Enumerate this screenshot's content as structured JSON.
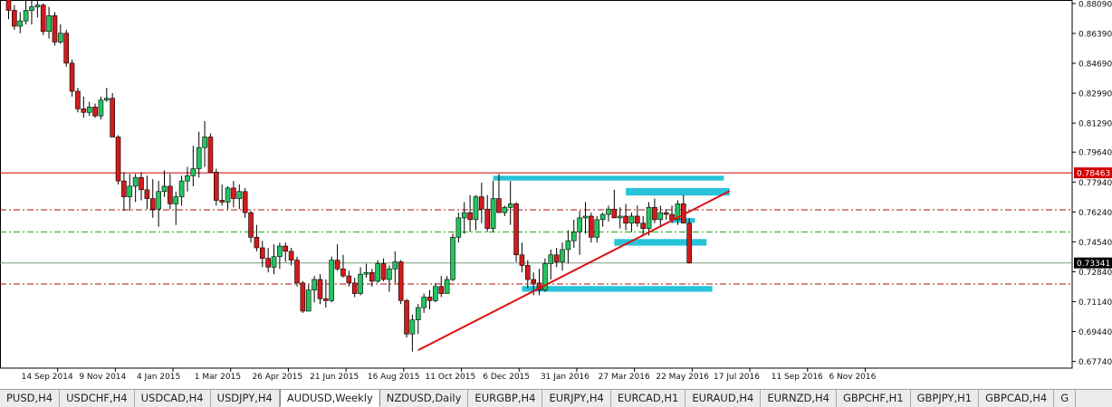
{
  "chart_data": {
    "type": "candlestick",
    "symbol": "AUDUSD",
    "timeframe": "Weekly",
    "y_ticks": [
      "0.88090",
      "0.86390",
      "0.84690",
      "0.82990",
      "0.81290",
      "0.79640",
      "0.77940",
      "0.76240",
      "0.74540",
      "0.72840",
      "0.71140",
      "0.69440",
      "0.67740"
    ],
    "x_ticks": [
      "14 Sep 2014",
      "9 Nov 2014",
      "4 Jan 2015",
      "1 Mar 2015",
      "26 Apr 2015",
      "21 Jun 2015",
      "16 Aug 2015",
      "11 Oct 2015",
      "6 Dec 2015",
      "31 Jan 2016",
      "27 Mar 2016",
      "22 May 2016",
      "17 Jul 2016",
      "11 Sep 2016",
      "6 Nov 2016"
    ],
    "ylim": [
      0.6736,
      0.8829
    ],
    "price_lines": [
      {
        "label": "0.78463",
        "value": 0.78463,
        "color": "#cc0000",
        "style": "solid",
        "label_bg": "#d40000",
        "label_fg": "#ffffff"
      },
      {
        "label": "0.73341",
        "value": 0.73341,
        "color": "#7a9a7a",
        "style": "solid",
        "label_bg": "#000000",
        "label_fg": "#ffffff"
      }
    ],
    "levels": [
      {
        "value": 0.7636,
        "color": "#aa1111",
        "style": "dash-dot"
      },
      {
        "value": 0.751,
        "color": "#22aa22",
        "style": "dash-dot"
      },
      {
        "value": 0.7214,
        "color": "#aa1111",
        "style": "dash-dot"
      }
    ],
    "candles": [
      {
        "o": 0.883,
        "h": 0.884,
        "l": 0.872,
        "c": 0.877
      },
      {
        "o": 0.877,
        "h": 0.88,
        "l": 0.866,
        "c": 0.868
      },
      {
        "o": 0.868,
        "h": 0.876,
        "l": 0.864,
        "c": 0.871
      },
      {
        "o": 0.871,
        "h": 0.883,
        "l": 0.869,
        "c": 0.877
      },
      {
        "o": 0.877,
        "h": 0.885,
        "l": 0.869,
        "c": 0.879
      },
      {
        "o": 0.879,
        "h": 0.883,
        "l": 0.873,
        "c": 0.88
      },
      {
        "o": 0.88,
        "h": 0.881,
        "l": 0.863,
        "c": 0.865
      },
      {
        "o": 0.865,
        "h": 0.879,
        "l": 0.861,
        "c": 0.874
      },
      {
        "o": 0.874,
        "h": 0.876,
        "l": 0.857,
        "c": 0.859
      },
      {
        "o": 0.859,
        "h": 0.869,
        "l": 0.858,
        "c": 0.864
      },
      {
        "o": 0.864,
        "h": 0.866,
        "l": 0.845,
        "c": 0.847
      },
      {
        "o": 0.847,
        "h": 0.849,
        "l": 0.828,
        "c": 0.831
      },
      {
        "o": 0.831,
        "h": 0.833,
        "l": 0.819,
        "c": 0.821
      },
      {
        "o": 0.821,
        "h": 0.828,
        "l": 0.816,
        "c": 0.819
      },
      {
        "o": 0.819,
        "h": 0.825,
        "l": 0.817,
        "c": 0.822
      },
      {
        "o": 0.822,
        "h": 0.824,
        "l": 0.816,
        "c": 0.817
      },
      {
        "o": 0.817,
        "h": 0.828,
        "l": 0.815,
        "c": 0.826
      },
      {
        "o": 0.826,
        "h": 0.833,
        "l": 0.825,
        "c": 0.827
      },
      {
        "o": 0.827,
        "h": 0.83,
        "l": 0.807,
        "c": 0.805
      },
      {
        "o": 0.805,
        "h": 0.806,
        "l": 0.778,
        "c": 0.78
      },
      {
        "o": 0.78,
        "h": 0.785,
        "l": 0.763,
        "c": 0.771
      },
      {
        "o": 0.771,
        "h": 0.784,
        "l": 0.763,
        "c": 0.777
      },
      {
        "o": 0.777,
        "h": 0.784,
        "l": 0.768,
        "c": 0.782
      },
      {
        "o": 0.782,
        "h": 0.785,
        "l": 0.769,
        "c": 0.775
      },
      {
        "o": 0.775,
        "h": 0.783,
        "l": 0.764,
        "c": 0.77
      },
      {
        "o": 0.77,
        "h": 0.781,
        "l": 0.759,
        "c": 0.764
      },
      {
        "o": 0.764,
        "h": 0.78,
        "l": 0.754,
        "c": 0.774
      },
      {
        "o": 0.774,
        "h": 0.786,
        "l": 0.771,
        "c": 0.777
      },
      {
        "o": 0.777,
        "h": 0.784,
        "l": 0.764,
        "c": 0.767
      },
      {
        "o": 0.767,
        "h": 0.774,
        "l": 0.755,
        "c": 0.771
      },
      {
        "o": 0.771,
        "h": 0.783,
        "l": 0.766,
        "c": 0.78
      },
      {
        "o": 0.78,
        "h": 0.788,
        "l": 0.774,
        "c": 0.783
      },
      {
        "o": 0.783,
        "h": 0.8,
        "l": 0.777,
        "c": 0.787
      },
      {
        "o": 0.787,
        "h": 0.808,
        "l": 0.782,
        "c": 0.799
      },
      {
        "o": 0.799,
        "h": 0.814,
        "l": 0.788,
        "c": 0.805
      },
      {
        "o": 0.805,
        "h": 0.807,
        "l": 0.786,
        "c": 0.785
      },
      {
        "o": 0.785,
        "h": 0.787,
        "l": 0.766,
        "c": 0.769
      },
      {
        "o": 0.769,
        "h": 0.778,
        "l": 0.766,
        "c": 0.768
      },
      {
        "o": 0.768,
        "h": 0.777,
        "l": 0.764,
        "c": 0.776
      },
      {
        "o": 0.776,
        "h": 0.78,
        "l": 0.765,
        "c": 0.77
      },
      {
        "o": 0.77,
        "h": 0.778,
        "l": 0.764,
        "c": 0.774
      },
      {
        "o": 0.774,
        "h": 0.776,
        "l": 0.759,
        "c": 0.762
      },
      {
        "o": 0.762,
        "h": 0.763,
        "l": 0.745,
        "c": 0.748
      },
      {
        "o": 0.748,
        "h": 0.755,
        "l": 0.74,
        "c": 0.742
      },
      {
        "o": 0.742,
        "h": 0.746,
        "l": 0.731,
        "c": 0.736
      },
      {
        "o": 0.736,
        "h": 0.742,
        "l": 0.728,
        "c": 0.731
      },
      {
        "o": 0.731,
        "h": 0.744,
        "l": 0.727,
        "c": 0.737
      },
      {
        "o": 0.737,
        "h": 0.745,
        "l": 0.73,
        "c": 0.743
      },
      {
        "o": 0.743,
        "h": 0.745,
        "l": 0.734,
        "c": 0.74
      },
      {
        "o": 0.74,
        "h": 0.742,
        "l": 0.732,
        "c": 0.735
      },
      {
        "o": 0.735,
        "h": 0.737,
        "l": 0.72,
        "c": 0.722
      },
      {
        "o": 0.722,
        "h": 0.723,
        "l": 0.705,
        "c": 0.706
      },
      {
        "o": 0.706,
        "h": 0.721,
        "l": 0.706,
        "c": 0.718
      },
      {
        "o": 0.718,
        "h": 0.726,
        "l": 0.711,
        "c": 0.724
      },
      {
        "o": 0.724,
        "h": 0.727,
        "l": 0.71,
        "c": 0.713
      },
      {
        "o": 0.713,
        "h": 0.724,
        "l": 0.708,
        "c": 0.712
      },
      {
        "o": 0.712,
        "h": 0.737,
        "l": 0.711,
        "c": 0.735
      },
      {
        "o": 0.735,
        "h": 0.744,
        "l": 0.729,
        "c": 0.73
      },
      {
        "o": 0.73,
        "h": 0.738,
        "l": 0.725,
        "c": 0.726
      },
      {
        "o": 0.726,
        "h": 0.729,
        "l": 0.72,
        "c": 0.722
      },
      {
        "o": 0.722,
        "h": 0.725,
        "l": 0.714,
        "c": 0.716
      },
      {
        "o": 0.716,
        "h": 0.731,
        "l": 0.715,
        "c": 0.727
      },
      {
        "o": 0.727,
        "h": 0.733,
        "l": 0.725,
        "c": 0.728
      },
      {
        "o": 0.728,
        "h": 0.73,
        "l": 0.72,
        "c": 0.723
      },
      {
        "o": 0.723,
        "h": 0.735,
        "l": 0.722,
        "c": 0.733
      },
      {
        "o": 0.733,
        "h": 0.736,
        "l": 0.723,
        "c": 0.724
      },
      {
        "o": 0.724,
        "h": 0.732,
        "l": 0.717,
        "c": 0.73
      },
      {
        "o": 0.73,
        "h": 0.74,
        "l": 0.722,
        "c": 0.734
      },
      {
        "o": 0.734,
        "h": 0.735,
        "l": 0.71,
        "c": 0.712
      },
      {
        "o": 0.712,
        "h": 0.713,
        "l": 0.691,
        "c": 0.693
      },
      {
        "o": 0.693,
        "h": 0.704,
        "l": 0.683,
        "c": 0.701
      },
      {
        "o": 0.701,
        "h": 0.71,
        "l": 0.693,
        "c": 0.708
      },
      {
        "o": 0.708,
        "h": 0.716,
        "l": 0.705,
        "c": 0.714
      },
      {
        "o": 0.714,
        "h": 0.718,
        "l": 0.707,
        "c": 0.712
      },
      {
        "o": 0.712,
        "h": 0.722,
        "l": 0.711,
        "c": 0.72
      },
      {
        "o": 0.72,
        "h": 0.726,
        "l": 0.714,
        "c": 0.716
      },
      {
        "o": 0.716,
        "h": 0.726,
        "l": 0.716,
        "c": 0.724
      },
      {
        "o": 0.724,
        "h": 0.75,
        "l": 0.723,
        "c": 0.748
      },
      {
        "o": 0.748,
        "h": 0.762,
        "l": 0.745,
        "c": 0.759
      },
      {
        "o": 0.759,
        "h": 0.768,
        "l": 0.75,
        "c": 0.762
      },
      {
        "o": 0.762,
        "h": 0.772,
        "l": 0.751,
        "c": 0.758
      },
      {
        "o": 0.758,
        "h": 0.772,
        "l": 0.752,
        "c": 0.771
      },
      {
        "o": 0.771,
        "h": 0.779,
        "l": 0.756,
        "c": 0.764
      },
      {
        "o": 0.764,
        "h": 0.772,
        "l": 0.751,
        "c": 0.753
      },
      {
        "o": 0.753,
        "h": 0.78,
        "l": 0.751,
        "c": 0.77
      },
      {
        "o": 0.77,
        "h": 0.784,
        "l": 0.764,
        "c": 0.762
      },
      {
        "o": 0.762,
        "h": 0.766,
        "l": 0.76,
        "c": 0.765
      },
      {
        "o": 0.765,
        "h": 0.78,
        "l": 0.755,
        "c": 0.767
      },
      {
        "o": 0.767,
        "h": 0.768,
        "l": 0.734,
        "c": 0.738
      },
      {
        "o": 0.738,
        "h": 0.745,
        "l": 0.728,
        "c": 0.732
      },
      {
        "o": 0.732,
        "h": 0.735,
        "l": 0.719,
        "c": 0.724
      },
      {
        "o": 0.724,
        "h": 0.728,
        "l": 0.715,
        "c": 0.722
      },
      {
        "o": 0.722,
        "h": 0.73,
        "l": 0.715,
        "c": 0.718
      },
      {
        "o": 0.718,
        "h": 0.736,
        "l": 0.717,
        "c": 0.733
      },
      {
        "o": 0.733,
        "h": 0.741,
        "l": 0.724,
        "c": 0.738
      },
      {
        "o": 0.738,
        "h": 0.742,
        "l": 0.731,
        "c": 0.734
      },
      {
        "o": 0.734,
        "h": 0.745,
        "l": 0.729,
        "c": 0.741
      },
      {
        "o": 0.741,
        "h": 0.752,
        "l": 0.733,
        "c": 0.746
      },
      {
        "o": 0.746,
        "h": 0.758,
        "l": 0.742,
        "c": 0.751
      },
      {
        "o": 0.751,
        "h": 0.763,
        "l": 0.738,
        "c": 0.759
      },
      {
        "o": 0.759,
        "h": 0.768,
        "l": 0.75,
        "c": 0.76
      },
      {
        "o": 0.76,
        "h": 0.762,
        "l": 0.745,
        "c": 0.748
      },
      {
        "o": 0.748,
        "h": 0.76,
        "l": 0.745,
        "c": 0.758
      },
      {
        "o": 0.758,
        "h": 0.762,
        "l": 0.754,
        "c": 0.761
      },
      {
        "o": 0.761,
        "h": 0.766,
        "l": 0.757,
        "c": 0.764
      },
      {
        "o": 0.764,
        "h": 0.775,
        "l": 0.76,
        "c": 0.759
      },
      {
        "o": 0.759,
        "h": 0.765,
        "l": 0.753,
        "c": 0.76
      },
      {
        "o": 0.76,
        "h": 0.767,
        "l": 0.752,
        "c": 0.756
      },
      {
        "o": 0.756,
        "h": 0.762,
        "l": 0.751,
        "c": 0.76
      },
      {
        "o": 0.76,
        "h": 0.766,
        "l": 0.754,
        "c": 0.756
      },
      {
        "o": 0.756,
        "h": 0.76,
        "l": 0.749,
        "c": 0.753
      },
      {
        "o": 0.753,
        "h": 0.768,
        "l": 0.749,
        "c": 0.765
      },
      {
        "o": 0.765,
        "h": 0.77,
        "l": 0.756,
        "c": 0.758
      },
      {
        "o": 0.758,
        "h": 0.766,
        "l": 0.754,
        "c": 0.762
      },
      {
        "o": 0.762,
        "h": 0.764,
        "l": 0.758,
        "c": 0.761
      },
      {
        "o": 0.761,
        "h": 0.766,
        "l": 0.756,
        "c": 0.758
      },
      {
        "o": 0.758,
        "h": 0.769,
        "l": 0.755,
        "c": 0.767
      },
      {
        "o": 0.767,
        "h": 0.772,
        "l": 0.756,
        "c": 0.756
      },
      {
        "o": 0.756,
        "h": 0.759,
        "l": 0.733,
        "c": 0.7334
      }
    ],
    "zones": [
      {
        "from": 0.7822,
        "to": 0.781,
        "i0": 84,
        "i1": 124.0,
        "color": "#27c3d8"
      },
      {
        "from": 0.7752,
        "to": 0.7725,
        "i0": 107,
        "i1": 125.0,
        "color": "#27c3d8"
      },
      {
        "from": 0.7581,
        "to": 0.757,
        "i0": 115,
        "i1": 119.0,
        "color": "#27c3d8"
      },
      {
        "from": 0.7462,
        "to": 0.744,
        "i0": 105,
        "i1": 121.0,
        "color": "#27c3d8"
      },
      {
        "from": 0.7195,
        "to": 0.7178,
        "i0": 89,
        "i1": 122.0,
        "color": "#27c3d8"
      }
    ],
    "trendline": {
      "i0": 71,
      "p0": 0.6838,
      "i1": 125.0,
      "p1": 0.7743,
      "color": "#dd1111"
    },
    "colors": {
      "bull": "#22c55e",
      "bear": "#d01c1c",
      "wick": "#000000"
    }
  },
  "tabs": [
    {
      "label": "PUSD,H4",
      "active": false
    },
    {
      "label": "USDCHF,H4",
      "active": false
    },
    {
      "label": "USDCAD,H4",
      "active": false
    },
    {
      "label": "USDJPY,H4",
      "active": false
    },
    {
      "label": "AUDUSD,Weekly",
      "active": true
    },
    {
      "label": "NZDUSD,Daily",
      "active": false
    },
    {
      "label": "EURGBP,H4",
      "active": false
    },
    {
      "label": "EURJPY,H4",
      "active": false
    },
    {
      "label": "EURCAD,H1",
      "active": false
    },
    {
      "label": "EURAUD,H4",
      "active": false
    },
    {
      "label": "EURNZD,H4",
      "active": false
    },
    {
      "label": "GBPCHF,H1",
      "active": false
    },
    {
      "label": "GBPJPY,H1",
      "active": false
    },
    {
      "label": "GBPCAD,H4",
      "active": false
    },
    {
      "label": "G",
      "active": false
    }
  ]
}
